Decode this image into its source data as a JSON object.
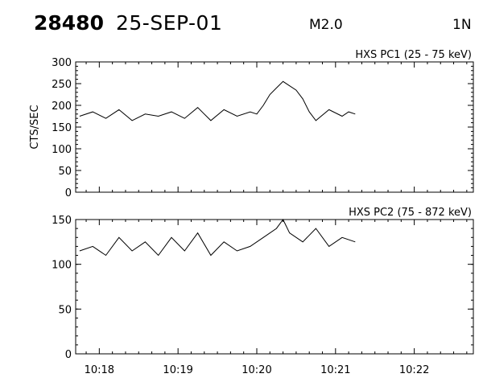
{
  "header": {
    "event_id": "28480",
    "date": "25-SEP-01",
    "flare_class": "M2.0",
    "flag": "1N"
  },
  "chart_data": [
    {
      "type": "line",
      "title": "HXS PC1 (25 - 75 keV)",
      "ylabel": "CTS/SEC",
      "xlabel": "",
      "xlim": [
        "10:17:42",
        "10:22:45"
      ],
      "ylim": [
        0,
        300
      ],
      "yticks": [
        0,
        50,
        100,
        150,
        200,
        250,
        300
      ],
      "xticks": [
        "10:18",
        "10:19",
        "10:20",
        "10:21",
        "10:22"
      ],
      "series": [
        {
          "x": [
            "10:17:45",
            "10:17:55",
            "10:18:05",
            "10:18:15",
            "10:18:25",
            "10:18:35",
            "10:18:45",
            "10:18:55",
            "10:19:05",
            "10:19:15",
            "10:19:25",
            "10:19:35",
            "10:19:45",
            "10:19:55",
            "10:20:00",
            "10:20:05",
            "10:20:10",
            "10:20:15",
            "10:20:20",
            "10:20:25",
            "10:20:30",
            "10:20:35",
            "10:20:40",
            "10:20:45",
            "10:20:55",
            "10:21:05",
            "10:21:10",
            "10:21:15"
          ],
          "values": [
            175,
            185,
            170,
            190,
            165,
            180,
            175,
            185,
            170,
            195,
            165,
            190,
            175,
            185,
            180,
            200,
            225,
            240,
            255,
            245,
            235,
            215,
            185,
            165,
            190,
            175,
            185,
            180
          ]
        }
      ]
    },
    {
      "type": "line",
      "title": "HXS PC2 (75 - 872 keV)",
      "ylabel": "",
      "xlabel": "",
      "xlim": [
        "10:17:42",
        "10:22:45"
      ],
      "ylim": [
        0,
        150
      ],
      "yticks": [
        0,
        50,
        100,
        150
      ],
      "xticks": [
        "10:18",
        "10:19",
        "10:20",
        "10:21",
        "10:22"
      ],
      "series": [
        {
          "x": [
            "10:17:45",
            "10:17:55",
            "10:18:05",
            "10:18:15",
            "10:18:25",
            "10:18:35",
            "10:18:45",
            "10:18:55",
            "10:19:05",
            "10:19:15",
            "10:19:25",
            "10:19:35",
            "10:19:45",
            "10:19:55",
            "10:20:05",
            "10:20:15",
            "10:20:20",
            "10:20:25",
            "10:20:35",
            "10:20:45",
            "10:20:55",
            "10:21:05",
            "10:21:15"
          ],
          "values": [
            115,
            120,
            110,
            130,
            115,
            125,
            110,
            130,
            115,
            135,
            110,
            125,
            115,
            120,
            130,
            140,
            150,
            135,
            125,
            140,
            120,
            130,
            125
          ]
        }
      ]
    }
  ]
}
